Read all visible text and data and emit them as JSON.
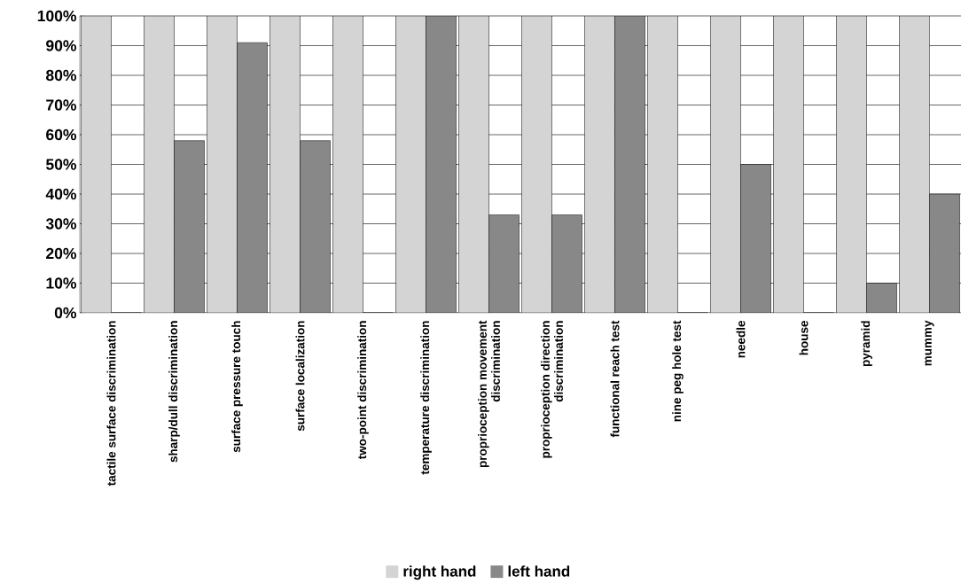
{
  "chart_data": {
    "type": "bar",
    "categories": [
      "tactile surface discrimination",
      "sharp/dull discrimination",
      "surface pressure touch",
      "surface localization",
      "two-point discrimination",
      "temperature discrimination",
      "proprioception movement discrimination",
      "proprioception direction discrimination",
      "functional reach test",
      "nine peg hole test",
      "needle",
      "house",
      "pyramid",
      "mummy"
    ],
    "series": [
      {
        "name": "right hand",
        "color": "#d4d4d4",
        "values": [
          100,
          100,
          100,
          100,
          100,
          100,
          100,
          100,
          100,
          100,
          100,
          100,
          100,
          100
        ]
      },
      {
        "name": "left hand",
        "color": "#888888",
        "values": [
          0,
          58,
          91,
          58,
          0,
          100,
          33,
          33,
          100,
          0,
          50,
          0,
          10,
          40
        ]
      }
    ],
    "ylim": [
      0,
      100
    ],
    "yticks": [
      {
        "value": 0,
        "label": "0%"
      },
      {
        "value": 10,
        "label": "10%"
      },
      {
        "value": 20,
        "label": "20%"
      },
      {
        "value": 30,
        "label": "30%"
      },
      {
        "value": 40,
        "label": "40%"
      },
      {
        "value": 50,
        "label": "50%"
      },
      {
        "value": 60,
        "label": "60%"
      },
      {
        "value": 70,
        "label": "70%"
      },
      {
        "value": 80,
        "label": "80%"
      },
      {
        "value": 90,
        "label": "90%"
      },
      {
        "value": 100,
        "label": "100%"
      }
    ],
    "grid": "y",
    "legend": "bottom"
  }
}
